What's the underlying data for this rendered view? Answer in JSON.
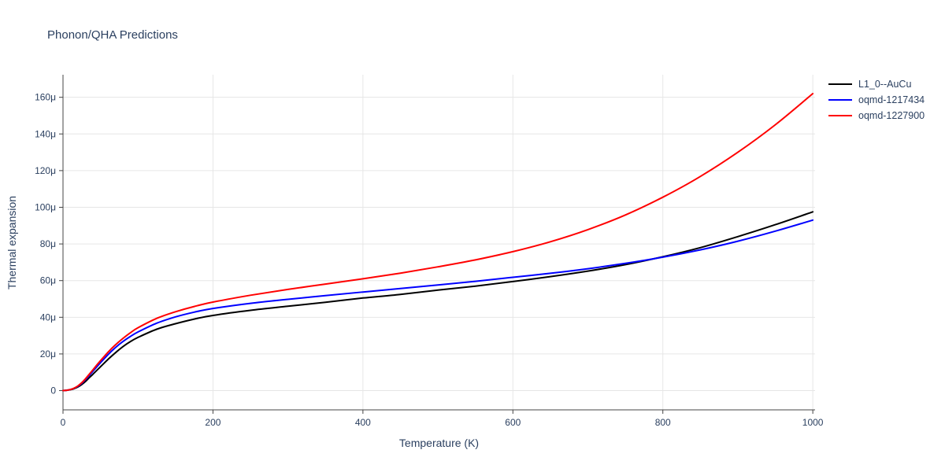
{
  "page": {
    "title": "Phonon/QHA Predictions"
  },
  "style": {
    "title_color": "#2a3f5f",
    "tick_label_color": "#2a3f5f",
    "axis_color": "#444444",
    "grid_color": "#e6e6e6",
    "background_color": "#ffffff"
  },
  "chart_data": {
    "type": "line",
    "title": "Phonon/QHA Predictions",
    "xlabel": "Temperature (K)",
    "ylabel": "Thermal expansion",
    "grid": true,
    "legend_position": "top-right",
    "xlim": [
      0,
      1003
    ],
    "ylim": [
      -10.5,
      172.3
    ],
    "x_ticks": {
      "values": [
        0,
        200,
        400,
        600,
        800,
        1000
      ],
      "labels": [
        "0",
        "200",
        "400",
        "600",
        "800",
        "1000"
      ]
    },
    "y_ticks": {
      "values": [
        0,
        20,
        40,
        60,
        80,
        100,
        120,
        140,
        160
      ],
      "labels": [
        "0",
        "20μ",
        "40μ",
        "60μ",
        "80μ",
        "100μ",
        "120μ",
        "140μ",
        "160μ"
      ]
    },
    "x": [
      0,
      5,
      10,
      15,
      20,
      25,
      30,
      35,
      40,
      45,
      50,
      60,
      70,
      80,
      90,
      100,
      125,
      150,
      175,
      200,
      250,
      300,
      350,
      400,
      450,
      500,
      550,
      600,
      650,
      700,
      750,
      800,
      850,
      900,
      950,
      1000
    ],
    "series": [
      {
        "name": "L1_0--AuCu",
        "color": "#000000",
        "values": [
          0,
          0.2,
          0.5,
          1.1,
          2.0,
          3.3,
          5.0,
          7.0,
          9.0,
          11.0,
          13.0,
          17.0,
          20.7,
          24.0,
          26.8,
          29.0,
          33.5,
          36.5,
          39.0,
          41.0,
          43.8,
          46.0,
          48.2,
          50.5,
          52.5,
          54.8,
          57.0,
          59.5,
          62.2,
          65.2,
          68.7,
          73.0,
          78.0,
          84.0,
          90.5,
          97.5
        ]
      },
      {
        "name": "oqmd-1217434",
        "color": "#0000ff",
        "values": [
          0,
          0.2,
          0.6,
          1.3,
          2.4,
          4.0,
          6.0,
          8.2,
          10.6,
          12.9,
          15.2,
          19.6,
          23.5,
          26.8,
          29.6,
          32.0,
          36.8,
          40.2,
          42.8,
          44.8,
          47.6,
          49.8,
          51.8,
          53.8,
          55.7,
          57.6,
          59.6,
          61.8,
          64.0,
          66.5,
          69.4,
          72.8,
          76.8,
          81.5,
          87.0,
          93.0
        ]
      },
      {
        "name": "oqmd-1227900",
        "color": "#ff0000",
        "values": [
          0,
          0.2,
          0.6,
          1.4,
          2.6,
          4.3,
          6.5,
          8.9,
          11.4,
          13.9,
          16.3,
          20.9,
          25.0,
          28.5,
          31.6,
          34.3,
          39.4,
          43.0,
          45.9,
          48.3,
          52.0,
          55.2,
          58.1,
          61.0,
          64.1,
          67.5,
          71.3,
          75.8,
          81.2,
          87.8,
          95.8,
          105.5,
          116.8,
          130.0,
          145.0,
          162.0
        ]
      }
    ]
  }
}
